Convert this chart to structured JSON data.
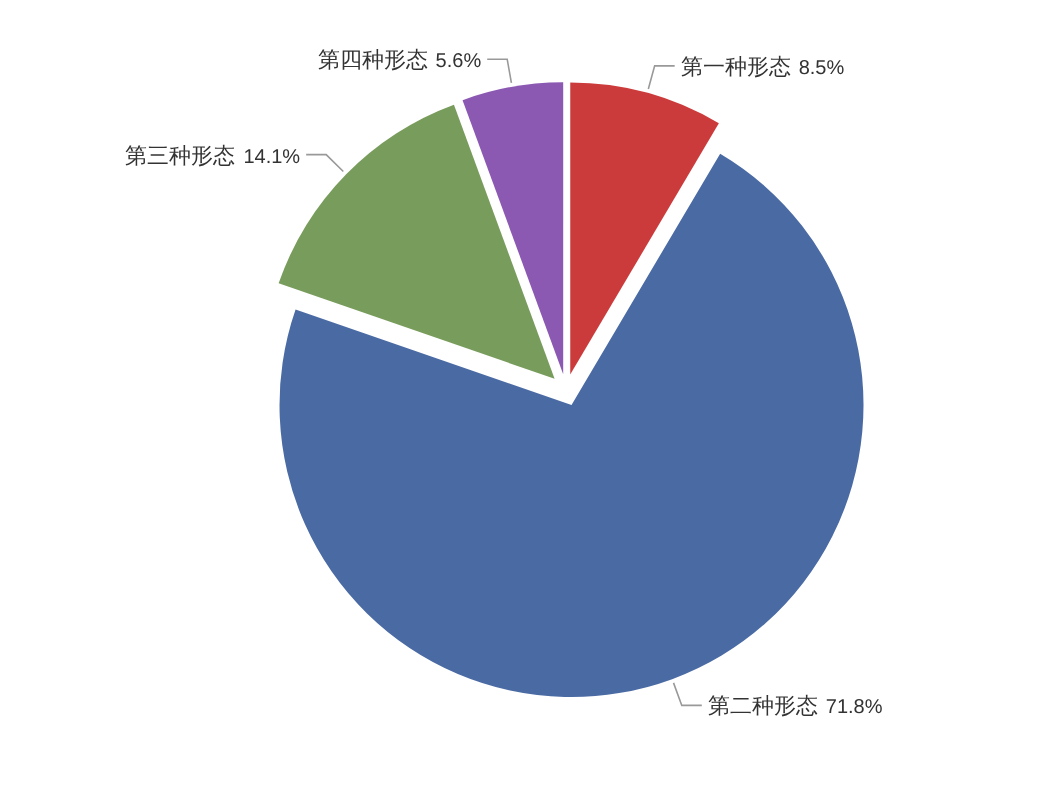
{
  "chart_data": {
    "type": "pie",
    "categories": [
      "第一种形态",
      "第二种形态",
      "第三种形态",
      "第四种形态"
    ],
    "values": [
      8.5,
      71.8,
      14.1,
      5.6
    ],
    "colors": [
      "#cc3b3b",
      "#4a6aa4",
      "#789c5b",
      "#8b58b2"
    ],
    "value_labels": [
      "8.5%",
      "71.8%",
      "14.1%",
      "5.6%"
    ]
  }
}
